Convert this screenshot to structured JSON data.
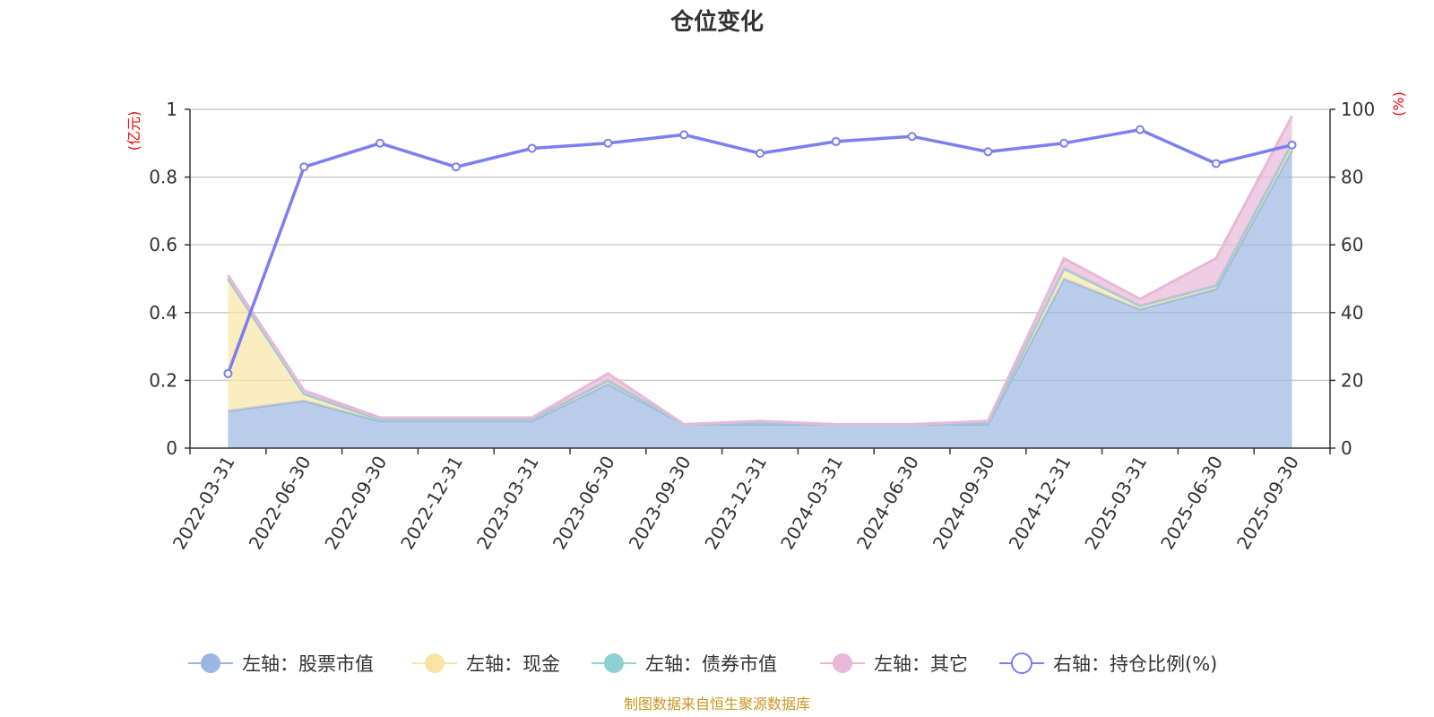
{
  "chart_data": {
    "type": "area",
    "title": "仓位变化",
    "left_unit": "(亿元)",
    "right_unit": "(%)",
    "left_ylim": [
      0,
      1
    ],
    "left_ticks": [
      "0",
      "0.2",
      "0.4",
      "0.6",
      "0.8",
      "1"
    ],
    "right_ylim": [
      0,
      100
    ],
    "right_ticks": [
      "0",
      "20",
      "40",
      "60",
      "80",
      "100"
    ],
    "categories": [
      "2022-03-31",
      "2022-06-30",
      "2022-09-30",
      "2022-12-31",
      "2023-03-31",
      "2023-06-30",
      "2023-09-30",
      "2023-12-31",
      "2024-03-31",
      "2024-06-30",
      "2024-09-30",
      "2024-12-31",
      "2025-03-31",
      "2025-06-30",
      "2025-09-30"
    ],
    "stacked_series": [
      {
        "name": "左轴：股票市值",
        "color": "#9bb6e0",
        "values": [
          0.11,
          0.14,
          0.08,
          0.08,
          0.08,
          0.19,
          0.07,
          0.07,
          0.07,
          0.07,
          0.07,
          0.5,
          0.41,
          0.47,
          0.88
        ]
      },
      {
        "name": "左轴：现金",
        "color": "#f8e5a5",
        "values": [
          0.39,
          0.02,
          0.005,
          0.005,
          0.005,
          0.01,
          0.0,
          0.005,
          0.0,
          0.0,
          0.005,
          0.03,
          0.01,
          0.01,
          0.02
        ]
      },
      {
        "name": "左轴：债券市值",
        "color": "#8fd0d2",
        "values": [
          0.0,
          0.0,
          0.0,
          0.0,
          0.0,
          0.0,
          0.0,
          0.0,
          0.0,
          0.0,
          0.0,
          0.0,
          0.0,
          0.0,
          0.0
        ]
      },
      {
        "name": "左轴：其它",
        "color": "#e8b8d8",
        "values": [
          0.01,
          0.01,
          0.005,
          0.005,
          0.005,
          0.02,
          0.0,
          0.005,
          0.0,
          0.0,
          0.005,
          0.03,
          0.02,
          0.08,
          0.08
        ]
      }
    ],
    "line_series": {
      "name": "右轴：持仓比例(%)",
      "color": "#7b7ff0",
      "axis": "right",
      "values": [
        22,
        83,
        90,
        83,
        88.5,
        90,
        92.5,
        87,
        90.5,
        92,
        87.5,
        90,
        94,
        84,
        89.5
      ]
    },
    "source": "制图数据来自恒生聚源数据库"
  }
}
